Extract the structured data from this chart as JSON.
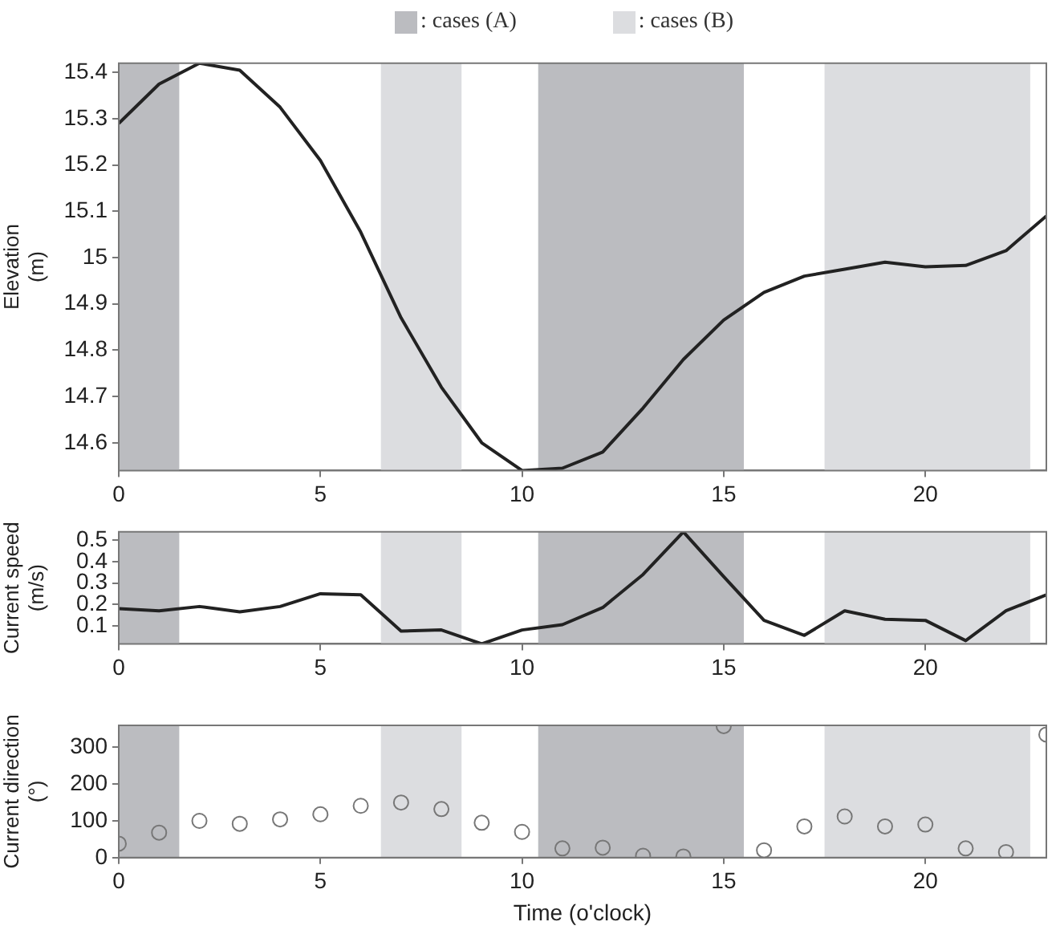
{
  "chart_data": [
    {
      "type": "line",
      "ylabel": "Elevation (m)",
      "legend": "top",
      "x": [
        0,
        1,
        2,
        3,
        4,
        5,
        6,
        7,
        8,
        9,
        10,
        11,
        12,
        13,
        14,
        15,
        16,
        17,
        18,
        19,
        20,
        21,
        22,
        23
      ],
      "series": [
        {
          "color": "#222222",
          "values": [
            15.29,
            15.375,
            15.42,
            15.405,
            15.325,
            15.21,
            15.055,
            14.87,
            14.72,
            14.6,
            14.54,
            14.545,
            14.58,
            14.675,
            14.78,
            14.865,
            14.925,
            14.96,
            14.975,
            14.99,
            14.98,
            14.983,
            15.015,
            15.09
          ]
        }
      ],
      "xlim": [
        0,
        23
      ],
      "xticks": [
        0,
        5,
        10,
        15,
        20
      ],
      "ylim": [
        14.54,
        15.42
      ],
      "yticks": [
        14.6,
        14.7,
        14.8,
        14.9,
        15,
        15.1,
        15.2,
        15.3,
        15.4
      ],
      "grid": false,
      "marker": "none",
      "line_style": "solid",
      "bands": [
        {
          "axis": "x",
          "from": 0,
          "to": 1.5,
          "color": "#bbbcc0",
          "label": ": cases (A)"
        },
        {
          "axis": "x",
          "from": 6.5,
          "to": 8.5,
          "color": "#dcdde0",
          "label": ": cases (B)"
        },
        {
          "axis": "x",
          "from": 10.4,
          "to": 15.5,
          "color": "#bbbcc0"
        },
        {
          "axis": "x",
          "from": 17.5,
          "to": 22.6,
          "color": "#dcdde0"
        }
      ]
    },
    {
      "type": "line",
      "ylabel": "Current speed (m/s)",
      "x": [
        0,
        1,
        2,
        3,
        4,
        5,
        6,
        7,
        8,
        9,
        10,
        11,
        12,
        13,
        14,
        15,
        16,
        17,
        18,
        19,
        20,
        21,
        22,
        23
      ],
      "series": [
        {
          "color": "#222222",
          "values": [
            0.18,
            0.17,
            0.19,
            0.165,
            0.19,
            0.25,
            0.245,
            0.075,
            0.08,
            0.015,
            0.08,
            0.105,
            0.185,
            0.34,
            0.54,
            0.33,
            0.125,
            0.055,
            0.17,
            0.13,
            0.125,
            0.03,
            0.17,
            0.245
          ]
        }
      ],
      "xlim": [
        0,
        23
      ],
      "xticks": [
        0,
        5,
        10,
        15,
        20
      ],
      "ylim": [
        0.015,
        0.54
      ],
      "yticks": [
        0.1,
        0.2,
        0.3,
        0.4,
        0.5
      ],
      "grid": false,
      "marker": "none",
      "line_style": "solid",
      "bands": [
        {
          "axis": "x",
          "from": 0,
          "to": 1.5,
          "color": "#bbbcc0"
        },
        {
          "axis": "x",
          "from": 6.5,
          "to": 8.5,
          "color": "#dcdde0"
        },
        {
          "axis": "x",
          "from": 10.4,
          "to": 15.5,
          "color": "#bbbcc0"
        },
        {
          "axis": "x",
          "from": 17.5,
          "to": 22.6,
          "color": "#dcdde0"
        }
      ]
    },
    {
      "type": "scatter",
      "ylabel": "Current direction (°)",
      "xlabel": "Time (o'clock)",
      "x": [
        0,
        1,
        2,
        3,
        4,
        5,
        6,
        7,
        8,
        9,
        10,
        11,
        12,
        13,
        14,
        15,
        16,
        17,
        18,
        19,
        20,
        21,
        22,
        23
      ],
      "series": [
        {
          "color": "#777777",
          "values": [
            38,
            68,
            100,
            92,
            104,
            118,
            141,
            150,
            132,
            95,
            70,
            25,
            27,
            5,
            3,
            358,
            20,
            85,
            112,
            85,
            90,
            25,
            15,
            335
          ]
        }
      ],
      "xlim": [
        0,
        23
      ],
      "xticks": [
        0,
        5,
        10,
        15,
        20
      ],
      "ylim": [
        0,
        360
      ],
      "yticks": [
        0,
        100,
        200,
        300
      ],
      "grid": false,
      "marker": "circle",
      "bands": [
        {
          "axis": "x",
          "from": 0,
          "to": 1.5,
          "color": "#bbbcc0"
        },
        {
          "axis": "x",
          "from": 6.5,
          "to": 8.5,
          "color": "#dcdde0"
        },
        {
          "axis": "x",
          "from": 10.4,
          "to": 15.5,
          "color": "#bbbcc0"
        },
        {
          "axis": "x",
          "from": 17.5,
          "to": 22.6,
          "color": "#dcdde0"
        }
      ]
    }
  ]
}
